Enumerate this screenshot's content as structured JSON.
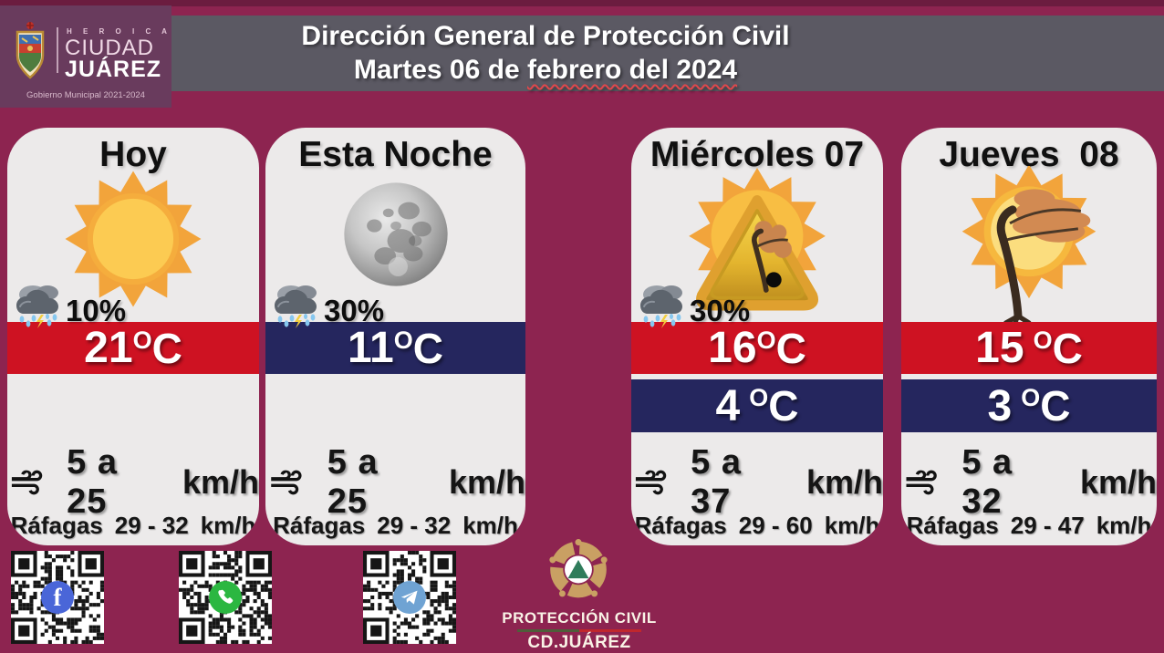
{
  "header": {
    "logo": {
      "heroica": "H E R O I C A",
      "ciudad": "CIUDAD",
      "juarez": "JUÁREZ",
      "gobierno": "Gobierno Municipal 2021-2024"
    },
    "title_line1": "Dirección General de Protección Civil",
    "title_line2_prefix": "Martes 06 de ",
    "title_line2_underlined": "febrero del 2024"
  },
  "temp_suffix": {
    "degree": "O",
    "unit": "C"
  },
  "cards": [
    {
      "title": "Hoy",
      "icon": "sun",
      "rain_chance": "10%",
      "temp_high": "21",
      "wind_range": "5 a 25",
      "wind_unit": "km/h",
      "gust_label": "Ráfagas",
      "gust_range": "29 - 32",
      "gust_unit": "km/h"
    },
    {
      "title": "Esta Noche",
      "icon": "full-moon",
      "rain_chance": "30%",
      "temp_low": "11",
      "wind_range": "5 a 25",
      "wind_unit": "km/h",
      "gust_label": "Ráfagas",
      "gust_range": "29 - 32",
      "gust_unit": "km/h"
    },
    {
      "title": "Miércoles 07",
      "icon": "wind-advisory-sun-tree",
      "rain_chance": "30%",
      "temp_high": "16",
      "temp_low": "4",
      "wind_range": "5 a 37",
      "wind_unit": "km/h",
      "gust_label": "Ráfagas",
      "gust_range": "29 - 60",
      "gust_unit": "km/h"
    },
    {
      "title": "Jueves  08",
      "icon": "windy-sun-tree",
      "temp_high": "15",
      "temp_low": "3",
      "wind_range": "5 a 32",
      "wind_unit": "km/h",
      "gust_label": "Ráfagas",
      "gust_range": "29 - 47",
      "gust_unit": "km/h"
    }
  ],
  "footer": {
    "qr_codes": [
      {
        "icon": "facebook"
      },
      {
        "icon": "whatsapp"
      },
      {
        "icon": "telegram"
      }
    ],
    "pc_logo": {
      "line1": "PROTECCIÓN CIVIL",
      "line2": "CD.JUÁREZ"
    }
  },
  "colors": {
    "background": "#8D2450",
    "header_band": "#5B5963",
    "logo_box": "#693B5D",
    "card_bg": "#ECEAEA",
    "high_temp_band": "#CE1222",
    "low_temp_band": "#25265E"
  }
}
